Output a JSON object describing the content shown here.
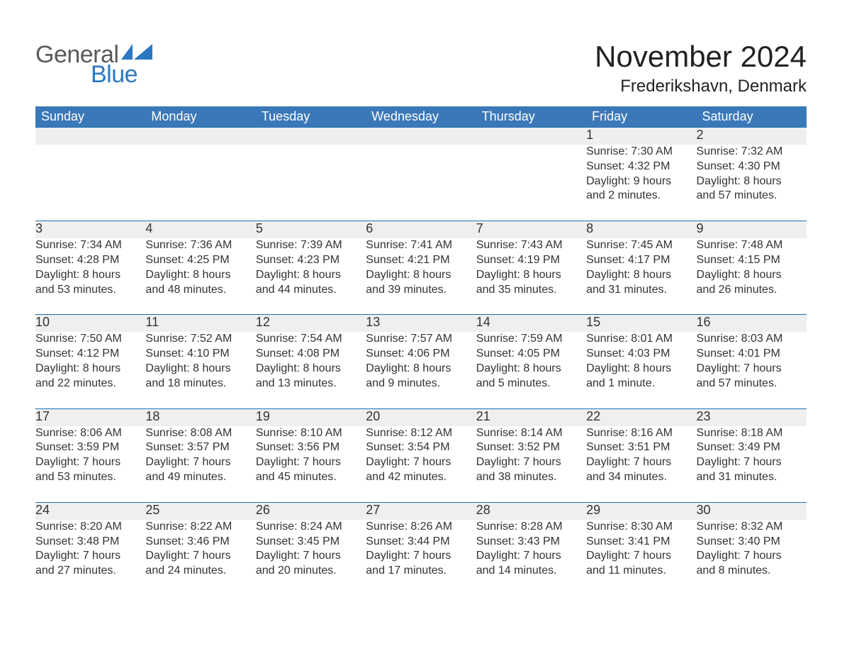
{
  "logo": {
    "word1": "General",
    "word2": "Blue"
  },
  "title": "November 2024",
  "location": "Frederikshavn, Denmark",
  "colors": {
    "header_blue": "#3b78b8",
    "accent_blue": "#1f6fb2",
    "row_gray": "#efefef",
    "logo_gray": "#5a5a5a",
    "logo_blue": "#2b78c2",
    "background": "#ffffff",
    "text": "#2b2b2b"
  },
  "layout": {
    "columns": 7,
    "weeks": 5
  },
  "weekdays": [
    "Sunday",
    "Monday",
    "Tuesday",
    "Wednesday",
    "Thursday",
    "Friday",
    "Saturday"
  ],
  "weeks": [
    [
      null,
      null,
      null,
      null,
      null,
      {
        "n": "1",
        "sunrise": "Sunrise: 7:30 AM",
        "sunset": "Sunset: 4:32 PM",
        "d1": "Daylight: 9 hours",
        "d2": "and 2 minutes."
      },
      {
        "n": "2",
        "sunrise": "Sunrise: 7:32 AM",
        "sunset": "Sunset: 4:30 PM",
        "d1": "Daylight: 8 hours",
        "d2": "and 57 minutes."
      }
    ],
    [
      {
        "n": "3",
        "sunrise": "Sunrise: 7:34 AM",
        "sunset": "Sunset: 4:28 PM",
        "d1": "Daylight: 8 hours",
        "d2": "and 53 minutes."
      },
      {
        "n": "4",
        "sunrise": "Sunrise: 7:36 AM",
        "sunset": "Sunset: 4:25 PM",
        "d1": "Daylight: 8 hours",
        "d2": "and 48 minutes."
      },
      {
        "n": "5",
        "sunrise": "Sunrise: 7:39 AM",
        "sunset": "Sunset: 4:23 PM",
        "d1": "Daylight: 8 hours",
        "d2": "and 44 minutes."
      },
      {
        "n": "6",
        "sunrise": "Sunrise: 7:41 AM",
        "sunset": "Sunset: 4:21 PM",
        "d1": "Daylight: 8 hours",
        "d2": "and 39 minutes."
      },
      {
        "n": "7",
        "sunrise": "Sunrise: 7:43 AM",
        "sunset": "Sunset: 4:19 PM",
        "d1": "Daylight: 8 hours",
        "d2": "and 35 minutes."
      },
      {
        "n": "8",
        "sunrise": "Sunrise: 7:45 AM",
        "sunset": "Sunset: 4:17 PM",
        "d1": "Daylight: 8 hours",
        "d2": "and 31 minutes."
      },
      {
        "n": "9",
        "sunrise": "Sunrise: 7:48 AM",
        "sunset": "Sunset: 4:15 PM",
        "d1": "Daylight: 8 hours",
        "d2": "and 26 minutes."
      }
    ],
    [
      {
        "n": "10",
        "sunrise": "Sunrise: 7:50 AM",
        "sunset": "Sunset: 4:12 PM",
        "d1": "Daylight: 8 hours",
        "d2": "and 22 minutes."
      },
      {
        "n": "11",
        "sunrise": "Sunrise: 7:52 AM",
        "sunset": "Sunset: 4:10 PM",
        "d1": "Daylight: 8 hours",
        "d2": "and 18 minutes."
      },
      {
        "n": "12",
        "sunrise": "Sunrise: 7:54 AM",
        "sunset": "Sunset: 4:08 PM",
        "d1": "Daylight: 8 hours",
        "d2": "and 13 minutes."
      },
      {
        "n": "13",
        "sunrise": "Sunrise: 7:57 AM",
        "sunset": "Sunset: 4:06 PM",
        "d1": "Daylight: 8 hours",
        "d2": "and 9 minutes."
      },
      {
        "n": "14",
        "sunrise": "Sunrise: 7:59 AM",
        "sunset": "Sunset: 4:05 PM",
        "d1": "Daylight: 8 hours",
        "d2": "and 5 minutes."
      },
      {
        "n": "15",
        "sunrise": "Sunrise: 8:01 AM",
        "sunset": "Sunset: 4:03 PM",
        "d1": "Daylight: 8 hours",
        "d2": "and 1 minute."
      },
      {
        "n": "16",
        "sunrise": "Sunrise: 8:03 AM",
        "sunset": "Sunset: 4:01 PM",
        "d1": "Daylight: 7 hours",
        "d2": "and 57 minutes."
      }
    ],
    [
      {
        "n": "17",
        "sunrise": "Sunrise: 8:06 AM",
        "sunset": "Sunset: 3:59 PM",
        "d1": "Daylight: 7 hours",
        "d2": "and 53 minutes."
      },
      {
        "n": "18",
        "sunrise": "Sunrise: 8:08 AM",
        "sunset": "Sunset: 3:57 PM",
        "d1": "Daylight: 7 hours",
        "d2": "and 49 minutes."
      },
      {
        "n": "19",
        "sunrise": "Sunrise: 8:10 AM",
        "sunset": "Sunset: 3:56 PM",
        "d1": "Daylight: 7 hours",
        "d2": "and 45 minutes."
      },
      {
        "n": "20",
        "sunrise": "Sunrise: 8:12 AM",
        "sunset": "Sunset: 3:54 PM",
        "d1": "Daylight: 7 hours",
        "d2": "and 42 minutes."
      },
      {
        "n": "21",
        "sunrise": "Sunrise: 8:14 AM",
        "sunset": "Sunset: 3:52 PM",
        "d1": "Daylight: 7 hours",
        "d2": "and 38 minutes."
      },
      {
        "n": "22",
        "sunrise": "Sunrise: 8:16 AM",
        "sunset": "Sunset: 3:51 PM",
        "d1": "Daylight: 7 hours",
        "d2": "and 34 minutes."
      },
      {
        "n": "23",
        "sunrise": "Sunrise: 8:18 AM",
        "sunset": "Sunset: 3:49 PM",
        "d1": "Daylight: 7 hours",
        "d2": "and 31 minutes."
      }
    ],
    [
      {
        "n": "24",
        "sunrise": "Sunrise: 8:20 AM",
        "sunset": "Sunset: 3:48 PM",
        "d1": "Daylight: 7 hours",
        "d2": "and 27 minutes."
      },
      {
        "n": "25",
        "sunrise": "Sunrise: 8:22 AM",
        "sunset": "Sunset: 3:46 PM",
        "d1": "Daylight: 7 hours",
        "d2": "and 24 minutes."
      },
      {
        "n": "26",
        "sunrise": "Sunrise: 8:24 AM",
        "sunset": "Sunset: 3:45 PM",
        "d1": "Daylight: 7 hours",
        "d2": "and 20 minutes."
      },
      {
        "n": "27",
        "sunrise": "Sunrise: 8:26 AM",
        "sunset": "Sunset: 3:44 PM",
        "d1": "Daylight: 7 hours",
        "d2": "and 17 minutes."
      },
      {
        "n": "28",
        "sunrise": "Sunrise: 8:28 AM",
        "sunset": "Sunset: 3:43 PM",
        "d1": "Daylight: 7 hours",
        "d2": "and 14 minutes."
      },
      {
        "n": "29",
        "sunrise": "Sunrise: 8:30 AM",
        "sunset": "Sunset: 3:41 PM",
        "d1": "Daylight: 7 hours",
        "d2": "and 11 minutes."
      },
      {
        "n": "30",
        "sunrise": "Sunrise: 8:32 AM",
        "sunset": "Sunset: 3:40 PM",
        "d1": "Daylight: 7 hours",
        "d2": "and 8 minutes."
      }
    ]
  ]
}
